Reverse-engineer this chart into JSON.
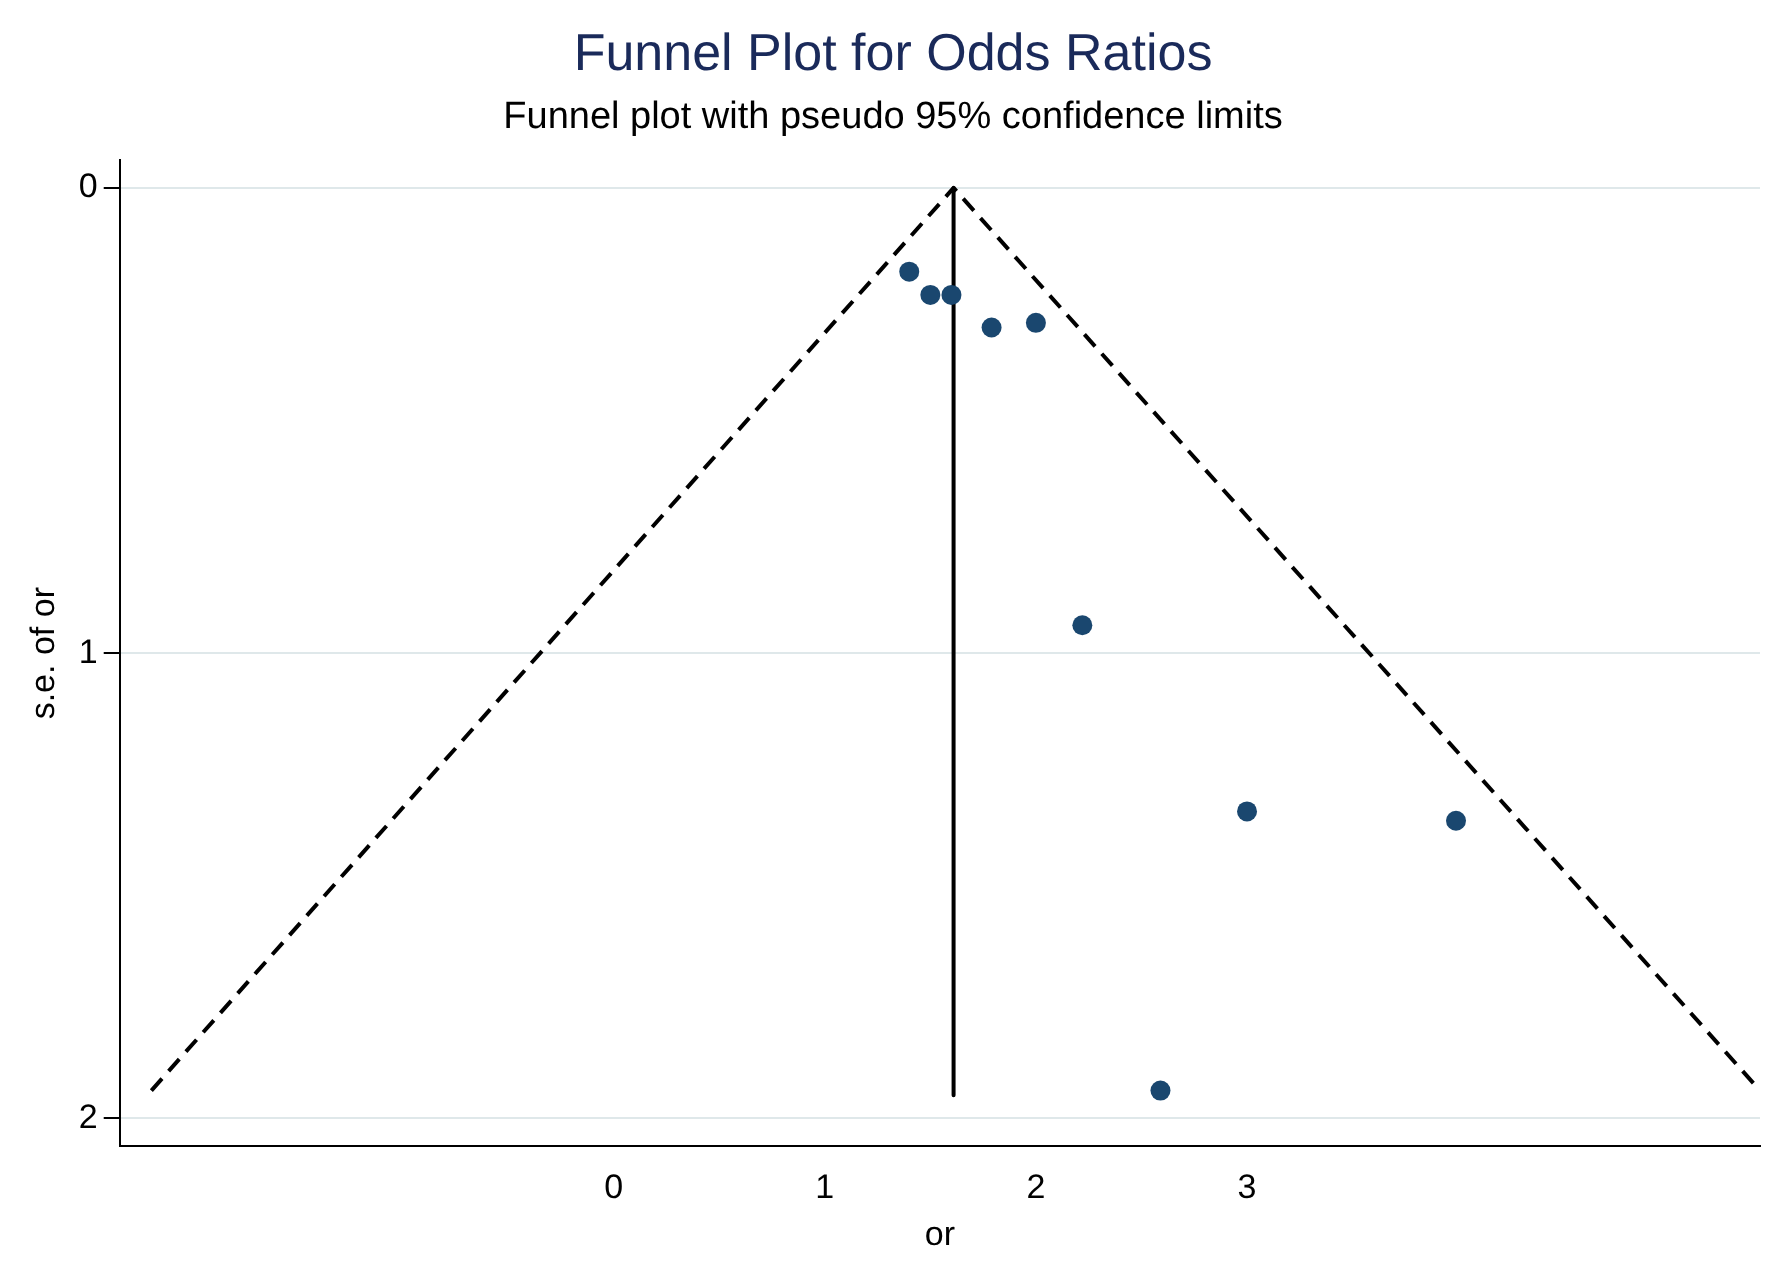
{
  "chart_data": {
    "type": "scatter",
    "title": "Funnel Plot for Odds Ratios",
    "subtitle": "Funnel plot with pseudo 95% confidence limits",
    "xlabel": "or",
    "ylabel": "s.e. of or",
    "xlim": [
      -2.34,
      5.43
    ],
    "xticks": [
      0,
      1,
      2,
      3
    ],
    "ylim": [
      2.06,
      -0.06
    ],
    "yticks": [
      0,
      1,
      2
    ],
    "grid": "y",
    "series": [
      {
        "color": "#1a476f",
        "marker": "circle",
        "x": [
          1.4,
          1.5,
          1.6,
          1.79,
          2.0,
          2.22,
          3.0,
          3.99,
          2.59
        ],
        "values": [
          0.18,
          0.23,
          0.23,
          0.3,
          0.29,
          0.94,
          1.34,
          1.36,
          1.94
        ]
      },
      {
        "type": "line",
        "color": "#000000",
        "marker": "none",
        "line_style": "solid",
        "x": [
          1.61,
          1.61
        ],
        "values": [
          0,
          1.95
        ]
      },
      {
        "type": "line",
        "color": "#000000",
        "marker": "none",
        "line_style": "dashed",
        "x": [
          -2.19,
          1.61,
          5.43
        ],
        "values": [
          1.94,
          0,
          1.94
        ]
      }
    ]
  }
}
